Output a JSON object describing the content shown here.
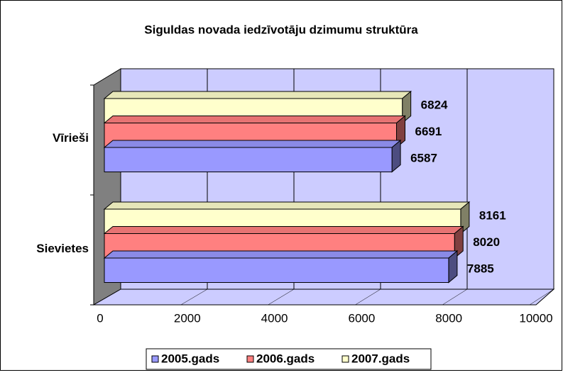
{
  "chart_data": {
    "type": "bar3d_horizontal",
    "title": "Siguldas novada iedzīvotāju dzimumu struktūra",
    "categories": [
      "Vīrieši",
      "Sievietes"
    ],
    "series": [
      {
        "name": "2005.gads",
        "color": "#9999ff",
        "values": [
          6587,
          7885
        ]
      },
      {
        "name": "2006.gads",
        "color": "#ff8080",
        "values": [
          6691,
          8020
        ]
      },
      {
        "name": "2007.gads",
        "color": "#ffffcc",
        "values": [
          6824,
          8161
        ]
      }
    ],
    "xlim": [
      0,
      10000
    ],
    "xticks": [
      0,
      2000,
      4000,
      6000,
      8000,
      10000
    ],
    "grid": true,
    "legend": "bottom"
  }
}
